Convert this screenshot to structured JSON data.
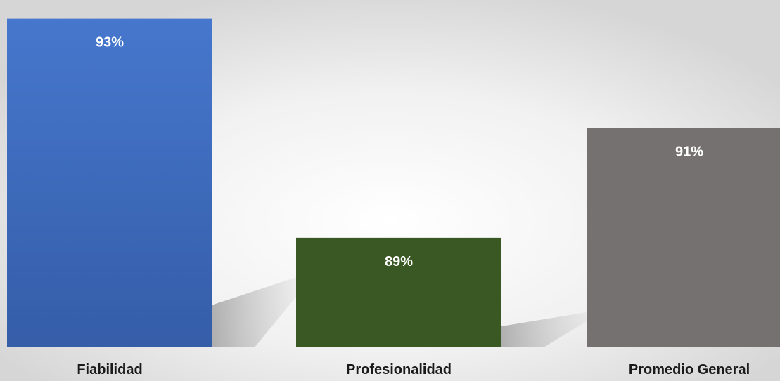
{
  "chart_data": {
    "type": "bar",
    "categories": [
      "Fiabilidad",
      "Profesionalidad",
      "Promedio General"
    ],
    "values": [
      93,
      89,
      91
    ],
    "value_labels": [
      "93%",
      "89%",
      "91%"
    ],
    "colors": [
      "#4472c4",
      "#3a5823",
      "#767171"
    ],
    "ylim": [
      87,
      93.2
    ],
    "grid": false,
    "legend": "none",
    "background": "light gray gradient with bar shadows"
  }
}
